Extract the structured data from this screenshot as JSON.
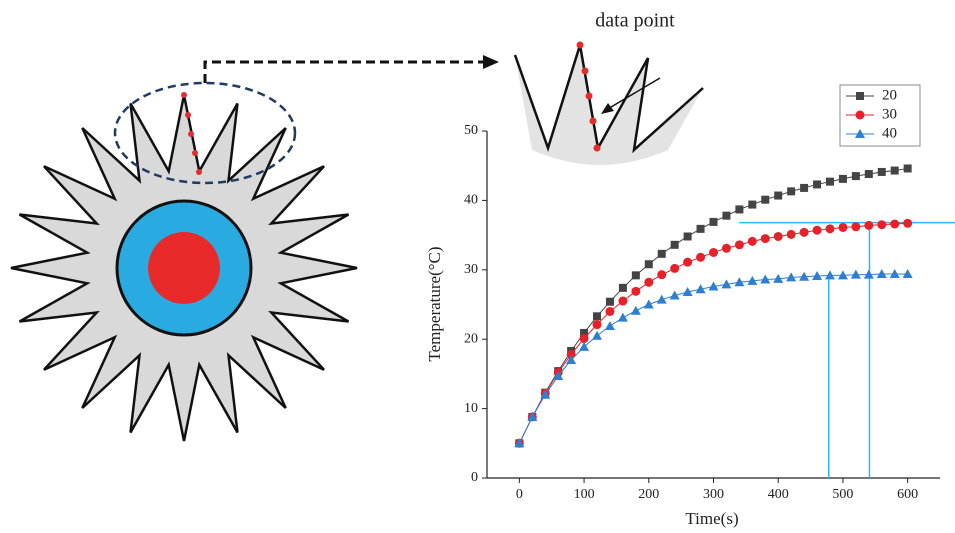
{
  "chart_data": {
    "type": "line",
    "annotation": "data point",
    "x_label": "Time(s)",
    "y_label": "Temperature(°C)",
    "x": [
      0,
      20,
      40,
      60,
      80,
      100,
      120,
      140,
      160,
      180,
      200,
      220,
      240,
      260,
      280,
      300,
      320,
      340,
      360,
      380,
      400,
      420,
      440,
      460,
      480,
      500,
      520,
      540,
      560,
      580,
      600
    ],
    "series": [
      {
        "name": "20",
        "color": "#444444",
        "marker": "square",
        "values": [
          5.0,
          8.8,
          12.3,
          15.4,
          18.3,
          20.9,
          23.3,
          25.4,
          27.4,
          29.2,
          30.8,
          32.3,
          33.6,
          34.8,
          35.9,
          36.9,
          37.8,
          38.7,
          39.4,
          40.1,
          40.7,
          41.3,
          41.8,
          42.3,
          42.7,
          43.1,
          43.5,
          43.8,
          44.1,
          44.3,
          44.6
        ]
      },
      {
        "name": "30",
        "color": "#e8202a",
        "marker": "circle",
        "values": [
          5.0,
          8.8,
          12.2,
          15.2,
          17.8,
          20.1,
          22.1,
          24.0,
          25.5,
          26.9,
          28.2,
          29.3,
          30.2,
          31.1,
          31.8,
          32.5,
          33.1,
          33.6,
          34.1,
          34.5,
          34.8,
          35.1,
          35.4,
          35.7,
          35.9,
          36.1,
          36.2,
          36.4,
          36.5,
          36.6,
          36.7
        ]
      },
      {
        "name": "40",
        "color": "#2f7fd1",
        "marker": "triangle",
        "values": [
          5.0,
          8.8,
          12.0,
          14.7,
          17.0,
          18.9,
          20.5,
          21.9,
          23.1,
          24.1,
          25.0,
          25.7,
          26.3,
          26.8,
          27.2,
          27.6,
          27.9,
          28.2,
          28.4,
          28.6,
          28.7,
          28.9,
          29.0,
          29.1,
          29.2,
          29.2,
          29.3,
          29.3,
          29.4,
          29.4,
          29.4
        ]
      }
    ],
    "xlim": [
      -50,
      650
    ],
    "xticks": [
      0,
      100,
      200,
      300,
      400,
      500,
      600
    ],
    "ylim": [
      0,
      50
    ],
    "yticks": [
      0,
      10,
      20,
      30,
      40,
      50
    ],
    "legend": "upper right",
    "reference_lines": {
      "color": "#29b6f6",
      "hline": {
        "y": 36.8,
        "x": 340
      },
      "vlines": [
        {
          "x": 478,
          "y": 29.3
        },
        {
          "x": 541,
          "y": 36.8
        }
      ]
    }
  }
}
